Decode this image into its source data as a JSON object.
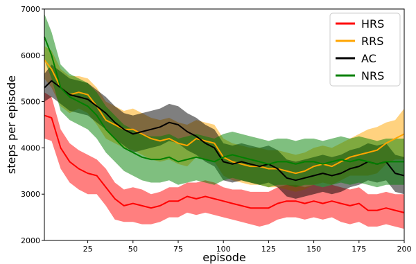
{
  "chart_data": {
    "type": "line",
    "xlabel": "episode",
    "ylabel": "steps per episode",
    "xlim": [
      1,
      200
    ],
    "ylim": [
      2000,
      7000
    ],
    "x_ticks": [
      25,
      50,
      75,
      100,
      125,
      150,
      175,
      200
    ],
    "y_ticks": [
      2000,
      3000,
      4000,
      5000,
      6000,
      7000
    ],
    "grid": false,
    "legend_position": "top-right",
    "shaded_band": "variance around each series mean",
    "series": [
      {
        "name": "HRS",
        "color": "#ff0000",
        "x": [
          1,
          5,
          10,
          15,
          20,
          25,
          30,
          35,
          40,
          45,
          50,
          55,
          60,
          65,
          70,
          75,
          80,
          85,
          90,
          95,
          100,
          105,
          110,
          115,
          120,
          125,
          130,
          135,
          140,
          145,
          150,
          155,
          160,
          165,
          170,
          175,
          180,
          185,
          190,
          195,
          200
        ],
        "mean": [
          4700,
          4650,
          4000,
          3700,
          3550,
          3450,
          3400,
          3150,
          2900,
          2750,
          2800,
          2750,
          2700,
          2750,
          2850,
          2850,
          2950,
          2900,
          2950,
          2900,
          2850,
          2800,
          2750,
          2700,
          2700,
          2700,
          2800,
          2850,
          2850,
          2800,
          2850,
          2800,
          2850,
          2800,
          2750,
          2800,
          2650,
          2650,
          2700,
          2650,
          2600
        ],
        "upper": [
          5200,
          5100,
          4400,
          4100,
          3950,
          3850,
          3750,
          3550,
          3250,
          3100,
          3150,
          3100,
          3000,
          3050,
          3150,
          3150,
          3250,
          3250,
          3300,
          3250,
          3150,
          3100,
          3100,
          3050,
          3050,
          3050,
          3150,
          3200,
          3200,
          3150,
          3200,
          3150,
          3200,
          3150,
          3100,
          3150,
          3000,
          3000,
          3050,
          3000,
          3000
        ],
        "lower": [
          4200,
          4150,
          3550,
          3250,
          3100,
          3000,
          3000,
          2750,
          2450,
          2400,
          2400,
          2350,
          2350,
          2400,
          2500,
          2500,
          2600,
          2550,
          2600,
          2550,
          2500,
          2450,
          2400,
          2350,
          2300,
          2350,
          2450,
          2500,
          2500,
          2450,
          2500,
          2450,
          2500,
          2400,
          2350,
          2400,
          2300,
          2300,
          2350,
          2300,
          2250
        ]
      },
      {
        "name": "RRS",
        "color": "#ffa500",
        "x": [
          1,
          5,
          10,
          15,
          20,
          25,
          30,
          35,
          40,
          45,
          50,
          55,
          60,
          65,
          70,
          75,
          80,
          85,
          90,
          95,
          100,
          105,
          110,
          115,
          120,
          125,
          130,
          135,
          140,
          145,
          150,
          155,
          160,
          165,
          170,
          175,
          180,
          185,
          190,
          195,
          200
        ],
        "mean": [
          5900,
          5700,
          5300,
          5150,
          5200,
          5150,
          4900,
          4600,
          4500,
          4400,
          4400,
          4300,
          4200,
          4150,
          4200,
          4100,
          4050,
          4200,
          4150,
          4100,
          3800,
          3700,
          3650,
          3600,
          3600,
          3550,
          3550,
          3500,
          3450,
          3500,
          3600,
          3650,
          3600,
          3700,
          3800,
          3850,
          3900,
          3950,
          4100,
          4200,
          4300
        ],
        "upper": [
          6200,
          6100,
          5700,
          5550,
          5550,
          5500,
          5300,
          5000,
          4900,
          4800,
          4850,
          4750,
          4650,
          4600,
          4650,
          4550,
          4500,
          4600,
          4550,
          4500,
          4200,
          4100,
          4050,
          4000,
          4000,
          3950,
          3950,
          3900,
          3850,
          3900,
          4000,
          4050,
          4000,
          4100,
          4200,
          4300,
          4400,
          4450,
          4550,
          4600,
          4850
        ],
        "lower": [
          5500,
          5300,
          4900,
          4750,
          4850,
          4750,
          4500,
          4200,
          4100,
          4000,
          3950,
          3850,
          3750,
          3700,
          3750,
          3650,
          3600,
          3800,
          3750,
          3700,
          3400,
          3300,
          3250,
          3200,
          3200,
          3150,
          3150,
          3100,
          3050,
          3100,
          3200,
          3250,
          3200,
          3300,
          3400,
          3400,
          3400,
          3450,
          3650,
          3750,
          3750
        ]
      },
      {
        "name": "AC",
        "color": "#000000",
        "x": [
          1,
          5,
          10,
          15,
          20,
          25,
          30,
          35,
          40,
          45,
          50,
          55,
          60,
          65,
          70,
          75,
          80,
          85,
          90,
          95,
          100,
          105,
          110,
          115,
          120,
          125,
          130,
          135,
          140,
          145,
          150,
          155,
          160,
          165,
          170,
          175,
          180,
          185,
          190,
          195,
          200
        ],
        "mean": [
          5300,
          5450,
          5300,
          5150,
          5100,
          5050,
          4900,
          4750,
          4550,
          4400,
          4300,
          4350,
          4400,
          4450,
          4550,
          4500,
          4350,
          4250,
          4100,
          4000,
          3700,
          3650,
          3700,
          3650,
          3600,
          3650,
          3550,
          3350,
          3300,
          3350,
          3400,
          3450,
          3400,
          3450,
          3550,
          3600,
          3700,
          3650,
          3700,
          3450,
          3400
        ],
        "upper": [
          5600,
          5800,
          5650,
          5500,
          5450,
          5400,
          5250,
          5100,
          4900,
          4750,
          4700,
          4750,
          4800,
          4850,
          4950,
          4900,
          4750,
          4650,
          4500,
          4400,
          4100,
          4050,
          4100,
          4050,
          4000,
          4050,
          3950,
          3750,
          3700,
          3750,
          3800,
          3850,
          3800,
          3850,
          3950,
          4000,
          4100,
          4050,
          4100,
          3850,
          3800
        ],
        "lower": [
          5000,
          5100,
          4950,
          4800,
          4750,
          4700,
          4550,
          4400,
          4200,
          4050,
          3900,
          3950,
          4000,
          4050,
          4150,
          4100,
          3950,
          3850,
          3700,
          3600,
          3300,
          3250,
          3300,
          3250,
          3200,
          3250,
          3150,
          2950,
          2900,
          2950,
          3000,
          3050,
          3000,
          3050,
          3150,
          3200,
          3300,
          3250,
          3300,
          3050,
          3000
        ]
      },
      {
        "name": "NRS",
        "color": "#008000",
        "x": [
          1,
          5,
          10,
          15,
          20,
          25,
          30,
          35,
          40,
          45,
          50,
          55,
          60,
          65,
          70,
          75,
          80,
          85,
          90,
          95,
          100,
          105,
          110,
          115,
          120,
          125,
          130,
          135,
          140,
          145,
          150,
          155,
          160,
          165,
          170,
          175,
          180,
          185,
          190,
          195,
          200
        ],
        "mean": [
          6400,
          6000,
          5300,
          5100,
          5000,
          4900,
          4700,
          4400,
          4200,
          4000,
          3900,
          3800,
          3750,
          3750,
          3800,
          3700,
          3750,
          3800,
          3750,
          3700,
          3800,
          3850,
          3800,
          3750,
          3700,
          3650,
          3700,
          3700,
          3650,
          3700,
          3700,
          3650,
          3700,
          3750,
          3700,
          3750,
          3700,
          3650,
          3700,
          3700,
          3700
        ],
        "upper": [
          6900,
          6500,
          5800,
          5600,
          5500,
          5400,
          5200,
          4900,
          4700,
          4500,
          4400,
          4300,
          4250,
          4250,
          4300,
          4200,
          4250,
          4300,
          4250,
          4200,
          4300,
          4350,
          4300,
          4250,
          4200,
          4150,
          4200,
          4200,
          4150,
          4200,
          4200,
          4150,
          4200,
          4250,
          4200,
          4250,
          4200,
          4150,
          4200,
          4200,
          4200
        ],
        "lower": [
          5900,
          5500,
          4800,
          4600,
          4500,
          4400,
          4200,
          3900,
          3700,
          3500,
          3400,
          3300,
          3250,
          3250,
          3300,
          3200,
          3250,
          3300,
          3250,
          3200,
          3300,
          3350,
          3300,
          3250,
          3200,
          3150,
          3200,
          3200,
          3150,
          3200,
          3200,
          3150,
          3200,
          3250,
          3200,
          3250,
          3200,
          3150,
          3200,
          3200,
          3200
        ]
      }
    ]
  }
}
